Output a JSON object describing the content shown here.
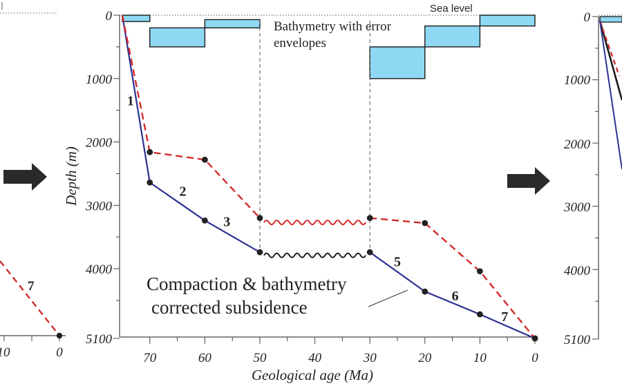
{
  "chart_data": {
    "type": "line",
    "xlabel": "Geological age (Ma)",
    "ylabel": "Depth (m)",
    "xlim": [
      75.5,
      0
    ],
    "ylim": [
      0,
      5100
    ],
    "x_ticks": [
      70,
      60,
      50,
      40,
      30,
      20,
      10,
      0
    ],
    "y_ticks": [
      0,
      1000,
      2000,
      3000,
      4000,
      5100
    ],
    "sea_level_label": "Sea level",
    "series": [
      {
        "color": "#2b3090",
        "style": "solid",
        "points": [
          [
            75,
            0
          ],
          [
            70,
            2640
          ],
          [
            60,
            3240
          ],
          [
            50,
            3740
          ],
          [
            30,
            3740
          ],
          [
            20,
            4360
          ],
          [
            10,
            4720
          ],
          [
            0,
            5100
          ]
        ]
      },
      {
        "color": "#d42a2a",
        "style": "dashed",
        "points": [
          [
            75,
            0
          ],
          [
            70,
            2160
          ],
          [
            60,
            2280
          ],
          [
            50,
            3200
          ],
          [
            30,
            3200
          ],
          [
            20,
            3280
          ],
          [
            10,
            4040
          ],
          [
            0,
            5100
          ]
        ]
      }
    ],
    "unconformities": [
      {
        "x_from": 50,
        "x_to": 30,
        "y": 3270,
        "color": "#d42a2a"
      },
      {
        "x_from": 50,
        "x_to": 30,
        "y": 3790,
        "color": "#1a1a1a"
      }
    ],
    "segment_labels": [
      {
        "text": "1",
        "x": 73.5,
        "y": 1420
      },
      {
        "text": "2",
        "x": 64,
        "y": 2850
      },
      {
        "text": "3",
        "x": 56,
        "y": 3330
      },
      {
        "text": "5",
        "x": 25,
        "y": 3960
      },
      {
        "text": "6",
        "x": 14.5,
        "y": 4500
      },
      {
        "text": "7",
        "x": 5.5,
        "y": 4830
      }
    ],
    "bathymetry_boxes": [
      {
        "x_from": 75,
        "x_to": 70,
        "top": 0,
        "bottom": 100
      },
      {
        "x_from": 70,
        "x_to": 60,
        "top": 200,
        "bottom": 500
      },
      {
        "x_from": 60,
        "x_to": 50,
        "top": 70,
        "bottom": 200
      },
      {
        "x_from": 30,
        "x_to": 20,
        "top": 500,
        "bottom": 1000
      },
      {
        "x_from": 20,
        "x_to": 10,
        "top": 170,
        "bottom": 500
      },
      {
        "x_from": 10,
        "x_to": 0,
        "top": 0,
        "bottom": 170
      }
    ],
    "bathymetry_color": "#8fd8f4",
    "annotations": {
      "bathymetry": [
        "Bathymetry with error",
        "envelopes"
      ],
      "subsidence": [
        "Compaction & bathymetry",
        "corrected subsidence"
      ]
    }
  },
  "left_panel": {
    "x_tick_labels": [
      "10",
      "0"
    ],
    "segment_label": "7"
  },
  "right_panel": {
    "y_tick_labels": [
      "0",
      "1000",
      "2000",
      "3000",
      "4000",
      "5100"
    ]
  },
  "colors": {
    "blue": "#2b3090",
    "red": "#d42a2a",
    "axis": "#444444",
    "arrow": "#2a2a2a",
    "dot": "#222222"
  }
}
